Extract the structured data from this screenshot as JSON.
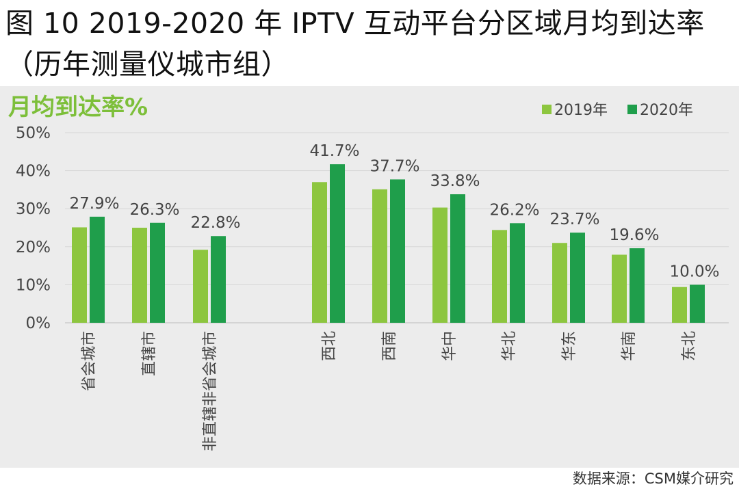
{
  "figure": {
    "title": "图 10 2019-2020 年 IPTV 互动平台分区域月均到达率（历年测量仪城市组）",
    "source": "数据来源：CSM媒介研究"
  },
  "colors": {
    "series_2019": "#8dc63f",
    "series_2020": "#1f9e4b",
    "ylabel": "#7dbf3a",
    "panel_bg": "#ececec",
    "grid": "#d6d6d6",
    "text": "#444444"
  },
  "chart_data": {
    "type": "bar",
    "title": "",
    "ylabel": "月均到达率%",
    "xlabel": "",
    "ylim": [
      0,
      50
    ],
    "yticks": [
      0,
      10,
      20,
      30,
      40,
      50
    ],
    "ytick_labels": [
      "0%",
      "10%",
      "20%",
      "30%",
      "40%",
      "50%"
    ],
    "grid": true,
    "legend_position": "top-right",
    "categories": [
      "省会城市",
      "直辖市",
      "非直辖非省会城市",
      "西北",
      "西南",
      "华中",
      "华北",
      "华东",
      "华南",
      "东北"
    ],
    "series": [
      {
        "name": "2019年",
        "values": [
          25.1,
          25.0,
          19.2,
          37.0,
          35.1,
          30.3,
          24.4,
          21.0,
          17.9,
          9.4
        ]
      },
      {
        "name": "2020年",
        "values": [
          27.9,
          26.3,
          22.8,
          41.7,
          37.7,
          33.8,
          26.2,
          23.7,
          19.6,
          10.0
        ]
      }
    ],
    "data_labels": [
      "27.9%",
      "26.3%",
      "22.8%",
      "41.7%",
      "37.7%",
      "33.8%",
      "26.2%",
      "23.7%",
      "19.6%",
      "10.0%"
    ]
  }
}
